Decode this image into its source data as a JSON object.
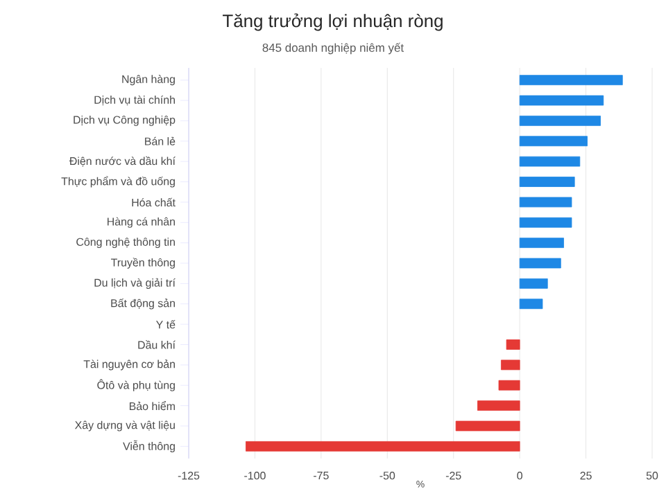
{
  "chart_data": {
    "type": "bar",
    "orientation": "horizontal",
    "title": "Tăng trưởng lợi nhuận ròng",
    "subtitle": "845 doanh nghiệp niêm yết",
    "xlabel": "%",
    "categories": [
      "Ngân hàng",
      "Dịch vụ tài chính",
      "Dịch vụ Công nghiệp",
      "Bán lẻ",
      "Điện nước và dầu khí",
      "Thực phẩm và đồ uống",
      "Hóa chất",
      "Hàng cá nhân",
      "Công nghệ thông tin",
      "Truyền thông",
      "Du lịch và giải trí",
      "Bất động sản",
      "Y tế",
      "Dầu khí",
      "Tài nguyên cơ bản",
      "Ôtô và phụ tùng",
      "Bảo hiểm",
      "Xây dựng và vật liệu",
      "Viễn thông"
    ],
    "values": [
      38.8,
      31.6,
      30.5,
      25.5,
      22.7,
      20.7,
      19.6,
      19.6,
      16.6,
      15.5,
      10.5,
      8.6,
      null,
      -5,
      -7,
      -7.9,
      -15.9,
      -24.1,
      -103.4
    ],
    "colors": [
      "#1e88e5",
      "#1e88e5",
      "#1e88e5",
      "#1e88e5",
      "#1e88e5",
      "#1e88e5",
      "#1e88e5",
      "#1e88e5",
      "#1e88e5",
      "#1e88e5",
      "#1e88e5",
      "#1e88e5",
      "#1e88e5",
      "#e53935",
      "#e53935",
      "#e53935",
      "#e53935",
      "#e53935",
      "#e53935"
    ],
    "xlim": [
      -125,
      50
    ],
    "xticks": [
      -125,
      -100,
      -75,
      -50,
      -25,
      0,
      25,
      50
    ],
    "grid": "x"
  }
}
